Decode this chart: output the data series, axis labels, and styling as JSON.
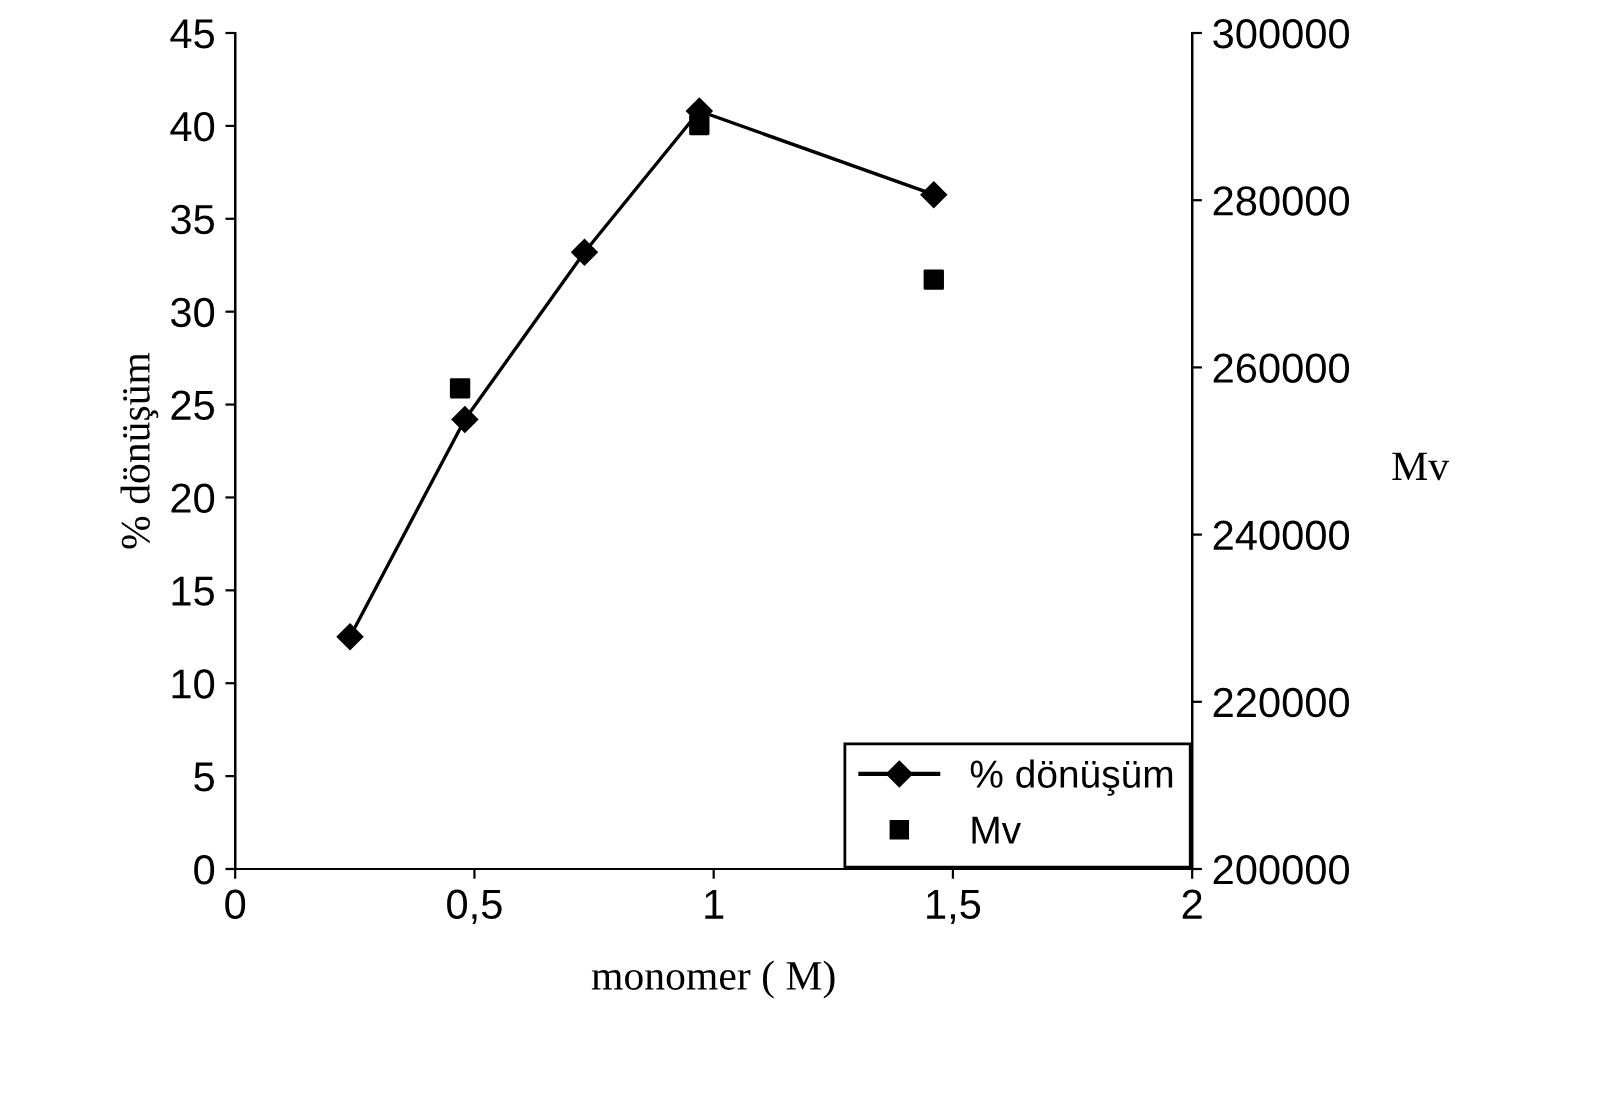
{
  "chart_data": {
    "type": "line",
    "xlabel": "monomer ( M)",
    "ylabel": "% dönüşüm",
    "y2label": "Mv",
    "xlim": [
      0,
      2
    ],
    "xticks": [
      0,
      {
        "value": 0.5,
        "label": "0,5"
      },
      1,
      {
        "value": 1.5,
        "label": "1,5"
      },
      2
    ],
    "ylim": [
      0,
      45
    ],
    "yticks": [
      0,
      5,
      10,
      15,
      20,
      25,
      30,
      35,
      40,
      45
    ],
    "y2lim": [
      200000,
      300000
    ],
    "y2ticks": [
      200000,
      220000,
      240000,
      260000,
      280000,
      300000
    ],
    "grid": false,
    "legend": "bottom right",
    "series": [
      {
        "name": "% dönüşüm",
        "color": "#000000",
        "marker": "diamond",
        "line_style": "solid",
        "x": [
          0.24,
          0.48,
          0.73,
          0.97,
          1.46
        ],
        "values": [
          12.5,
          24.2,
          33.2,
          40.8,
          36.3
        ]
      },
      {
        "name": "Mv",
        "type": "scatter",
        "axis": "y2",
        "color": "#000000",
        "marker": "square",
        "x": [
          0.47,
          0.97,
          1.46
        ],
        "values": [
          257500,
          289000,
          270500
        ]
      }
    ]
  }
}
